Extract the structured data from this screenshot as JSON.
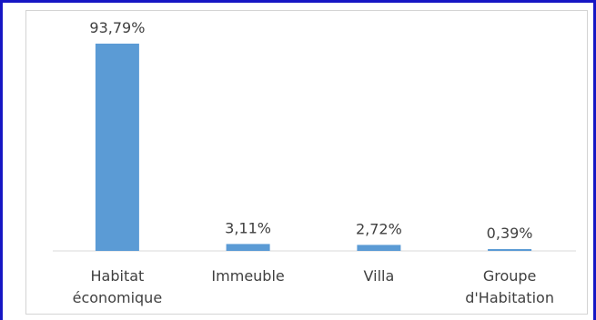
{
  "chart_data": {
    "type": "bar",
    "categories": [
      [
        "Habitat",
        "économique"
      ],
      [
        "Immeuble"
      ],
      [
        "Villa"
      ],
      [
        "Groupe",
        "d'Habitation"
      ]
    ],
    "values": [
      93.79,
      3.11,
      2.72,
      0.39
    ],
    "data_labels": [
      "93,79%",
      "3,11%",
      "2,72%",
      "0,39%"
    ],
    "title": "",
    "xlabel": "",
    "ylabel": "",
    "ylim": [
      0,
      100
    ],
    "grid": false,
    "legend": "none",
    "bar_color": "#5b9bd5",
    "axis_color": "#d9d9d9"
  }
}
